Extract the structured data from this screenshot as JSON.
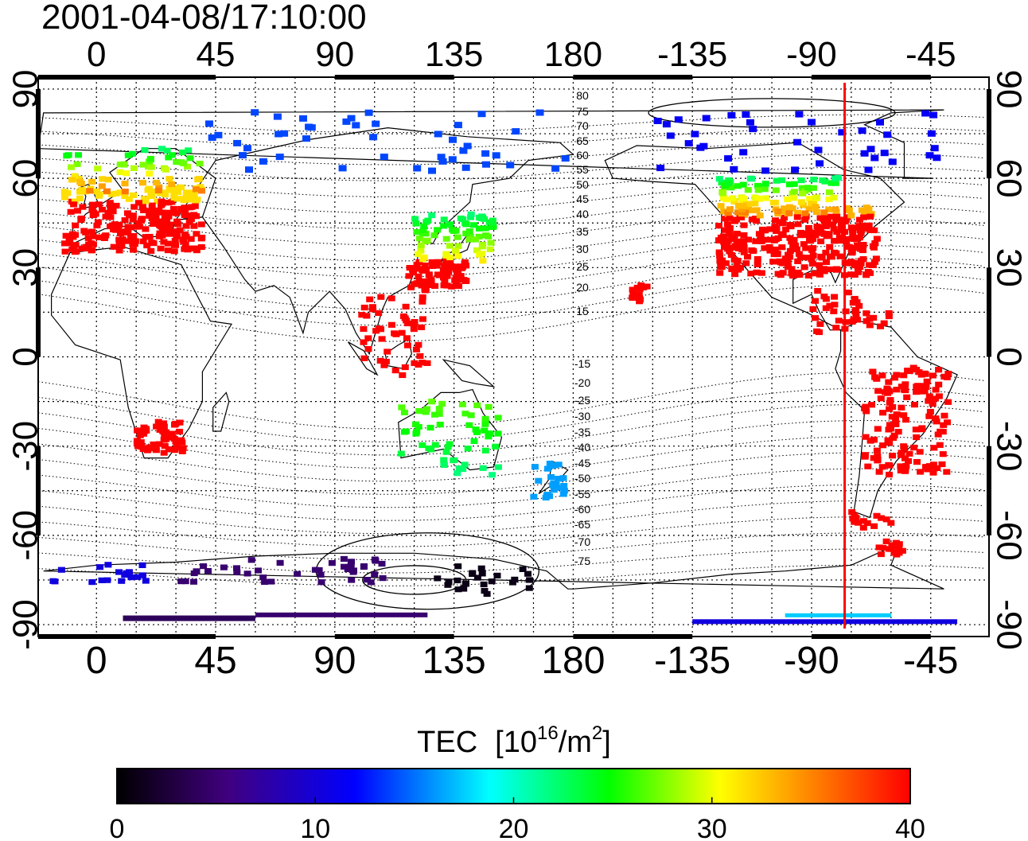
{
  "header": {
    "timestamp": "2001-04-08/17:10:00"
  },
  "map": {
    "projection": "equirectangular",
    "central_longitude": 155,
    "lon_range": [
      -22,
      337
    ],
    "lat_range": [
      -94,
      94
    ],
    "top_lon_ticks": [
      "0",
      "45",
      "90",
      "135",
      "180",
      "-135",
      "-90",
      "-45"
    ],
    "bottom_lon_ticks": [
      "0",
      "45",
      "90",
      "135",
      "180",
      "-135",
      "-90",
      "-45"
    ],
    "lat_ticks": [
      "90",
      "60",
      "30",
      "0",
      "-30",
      "-60",
      "-90"
    ],
    "grid": true,
    "terminator_longitude": -77.5,
    "terminator_color": "#ff0000",
    "magnetic_latitude_labels": [
      "80",
      "75",
      "70",
      "65",
      "60",
      "55",
      "50",
      "45",
      "40",
      "35",
      "30",
      "25",
      "20",
      "15",
      "-15",
      "-20",
      "-25",
      "-30",
      "-35",
      "-40",
      "-45",
      "-50",
      "-55",
      "-60",
      "-65",
      "-70",
      "-75"
    ]
  },
  "colorbar": {
    "title_main": "TEC",
    "title_unit_prefix": "[10",
    "title_unit_exp": "16",
    "title_unit_mid": "/m",
    "title_unit_exp2": "2",
    "title_unit_suffix": "]",
    "tick_labels": [
      "0",
      "10",
      "20",
      "30",
      "40"
    ],
    "min": 0,
    "max": 40,
    "stops": [
      "#000000",
      "#40007f",
      "#0000ff",
      "#00ffff",
      "#00ff00",
      "#ffff00",
      "#ff7f00",
      "#ff0000"
    ]
  }
}
